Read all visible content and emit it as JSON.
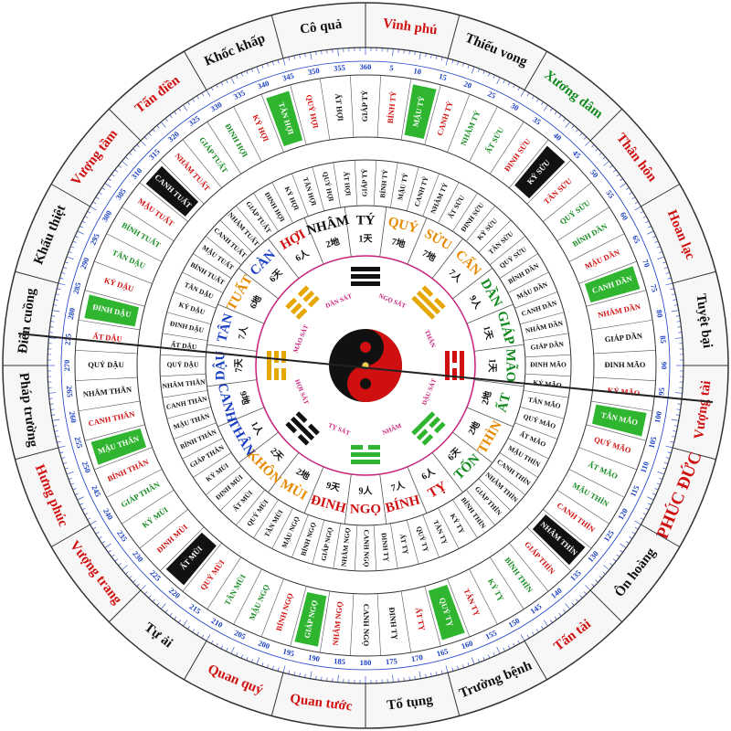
{
  "colors": {
    "red": "#d01010",
    "black": "#111111",
    "green": "#138a1f",
    "orange": "#e68a00",
    "blue": "#1a3fc4",
    "highlight_green": "#2fb52f",
    "highlight_black": "#111111"
  },
  "outer_ring": [
    {
      "text": "Vinh phú",
      "color": "red"
    },
    {
      "text": "Thiếu vong",
      "color": "black"
    },
    {
      "text": "Xương dâm",
      "color": "green"
    },
    {
      "text": "Thân hôn",
      "color": "red"
    },
    {
      "text": "Hoan lạc",
      "color": "red"
    },
    {
      "text": "Tuyệt bại",
      "color": "black"
    },
    {
      "text": "Vượng tài",
      "color": "red"
    },
    {
      "text": "PHÚC ĐỨC",
      "color": "red"
    },
    {
      "text": "Ôn hoàng",
      "color": "black"
    },
    {
      "text": "Tấn tài",
      "color": "red"
    },
    {
      "text": "Trường bệnh",
      "color": "black"
    },
    {
      "text": "Tố tụng",
      "color": "black"
    },
    {
      "text": "Quan tước",
      "color": "red"
    },
    {
      "text": "Quan quý",
      "color": "red"
    },
    {
      "text": "Tự ải",
      "color": "black"
    },
    {
      "text": "Vượng trang",
      "color": "red"
    },
    {
      "text": "Hưng phúc",
      "color": "red"
    },
    {
      "text": "Pháp trường",
      "color": "black"
    },
    {
      "text": "Điên cuồng",
      "color": "black"
    },
    {
      "text": "Khẩu thiệt",
      "color": "black"
    },
    {
      "text": "Vượng tầm",
      "color": "red"
    },
    {
      "text": "Tấn điền",
      "color": "red"
    },
    {
      "text": "Khốc khấp",
      "color": "black"
    },
    {
      "text": "Cô quả",
      "color": "black"
    }
  ],
  "degree_labels": [
    "5",
    "10",
    "15",
    "20",
    "25",
    "30",
    "35",
    "40",
    "45",
    "50",
    "55",
    "60",
    "65",
    "70",
    "75",
    "80",
    "85",
    "90",
    "95",
    "100",
    "105",
    "110",
    "115",
    "120",
    "125",
    "130",
    "135",
    "140",
    "145",
    "150",
    "155",
    "160",
    "165",
    "170",
    "175",
    "180",
    "185",
    "190",
    "195",
    "200",
    "205",
    "210",
    "215",
    "220",
    "225",
    "230",
    "235",
    "240",
    "245",
    "250",
    "255",
    "260",
    "265",
    "270",
    "275",
    "280",
    "285",
    "290",
    "295",
    "300",
    "305",
    "310",
    "315",
    "320",
    "325",
    "330",
    "335",
    "340",
    "345",
    "350",
    "355",
    "360"
  ],
  "sixty_ring": [
    {
      "text": "GIÁP TÝ",
      "color": "black"
    },
    {
      "text": "BÍNH TÝ",
      "color": "red"
    },
    {
      "text": "MẬU TÝ",
      "color": "green",
      "hl": "green"
    },
    {
      "text": "CANH TÝ",
      "color": "red"
    },
    {
      "text": "NHÂM TÝ",
      "color": "green"
    },
    {
      "text": "ẤT SỬU",
      "color": "green"
    },
    {
      "text": "ĐINH SỬU",
      "color": "red"
    },
    {
      "text": "KỶ SỬU",
      "color": "black",
      "hl": "black"
    },
    {
      "text": "TÂN SỬU",
      "color": "red"
    },
    {
      "text": "QUÝ SỬU",
      "color": "green"
    },
    {
      "text": "BÍNH DẦN",
      "color": "green"
    },
    {
      "text": "MẬU DẦN",
      "color": "red"
    },
    {
      "text": "CANH DẦN",
      "color": "green",
      "hl": "green"
    },
    {
      "text": "NHÂM DẦN",
      "color": "red"
    },
    {
      "text": "GIÁP DẦN",
      "color": "black"
    },
    {
      "text": "ĐINH MÃO",
      "color": "black"
    },
    {
      "text": "KỶ MÃO",
      "color": "red"
    },
    {
      "text": "TÂN MÃO",
      "color": "green",
      "hl": "green"
    },
    {
      "text": "QUÝ MÃO",
      "color": "red"
    },
    {
      "text": "ẤT MÃO",
      "color": "green"
    },
    {
      "text": "MẬU THÌN",
      "color": "green"
    },
    {
      "text": "CANH THÌN",
      "color": "red"
    },
    {
      "text": "NHÂM THÌN",
      "color": "black",
      "hl": "black"
    },
    {
      "text": "GIÁP THÌN",
      "color": "red"
    },
    {
      "text": "BÍNH THÌN",
      "color": "green"
    },
    {
      "text": "KỶ TỴ",
      "color": "green"
    },
    {
      "text": "TÂN TỴ",
      "color": "red"
    },
    {
      "text": "QUÝ TỴ",
      "color": "green",
      "hl": "green"
    },
    {
      "text": "ẤT TỴ",
      "color": "red"
    },
    {
      "text": "ĐINH TỴ",
      "color": "black"
    },
    {
      "text": "CANH NGỌ",
      "color": "black"
    },
    {
      "text": "NHÂM NGỌ",
      "color": "red"
    },
    {
      "text": "GIÁP NGỌ",
      "color": "green",
      "hl": "green"
    },
    {
      "text": "BÍNH NGỌ",
      "color": "red"
    },
    {
      "text": "MẬU NGỌ",
      "color": "green"
    },
    {
      "text": "TÂN MÙI",
      "color": "green"
    },
    {
      "text": "QUÝ MÙI",
      "color": "red"
    },
    {
      "text": "ẤT MÙI",
      "color": "black",
      "hl": "black"
    },
    {
      "text": "ĐINH MÙI",
      "color": "red"
    },
    {
      "text": "KỶ MÙI",
      "color": "green"
    },
    {
      "text": "GIÁP THÂN",
      "color": "green"
    },
    {
      "text": "BÍNH THÂN",
      "color": "red"
    },
    {
      "text": "MẬU THÂN",
      "color": "green",
      "hl": "green"
    },
    {
      "text": "CANH THÂN",
      "color": "red"
    },
    {
      "text": "NHÂM THÂN",
      "color": "black"
    },
    {
      "text": "QUÝ DẬU",
      "color": "black"
    },
    {
      "text": "ẤT DẬU",
      "color": "red"
    },
    {
      "text": "ĐINH DẬU",
      "color": "green",
      "hl": "green"
    },
    {
      "text": "KỶ DẬU",
      "color": "red"
    },
    {
      "text": "TÂN DẬU",
      "color": "green"
    },
    {
      "text": "BÍNH TUẤT",
      "color": "green"
    },
    {
      "text": "MẬU TUẤT",
      "color": "red"
    },
    {
      "text": "CANH TUẤT",
      "color": "black",
      "hl": "black"
    },
    {
      "text": "NHÂM TUẤT",
      "color": "red"
    },
    {
      "text": "GIÁP TUẤT",
      "color": "green"
    },
    {
      "text": "ĐINH HỢI",
      "color": "green"
    },
    {
      "text": "KỶ HỢI",
      "color": "red"
    },
    {
      "text": "TÂN HỢI",
      "color": "green",
      "hl": "green"
    },
    {
      "text": "QUÝ HỢI",
      "color": "red"
    },
    {
      "text": "ẤT HỢI",
      "color": "black"
    }
  ],
  "inner_sixty_ring": [
    {
      "text": "GIÁP TÝ"
    },
    {
      "text": "BÍNH TÝ"
    },
    {
      "text": "MẬU TÝ"
    },
    {
      "text": "CANH TÝ"
    },
    {
      "text": "NHÂM TÝ"
    },
    {
      "text": "ẤT SỬU"
    },
    {
      "text": "ĐINH SỬU"
    },
    {
      "text": "KỶ SỬU"
    },
    {
      "text": "TÂN SỬU"
    },
    {
      "text": "QUÝ SỬU"
    },
    {
      "text": "BÍNH DẦN"
    },
    {
      "text": "MẬU DẦN"
    },
    {
      "text": "CANH DẦN"
    },
    {
      "text": "NHÂM DẦN"
    },
    {
      "text": "GIÁP DẦN"
    },
    {
      "text": "ĐINH MÃO"
    },
    {
      "text": "KỶ MÃO"
    },
    {
      "text": "TÂN MÃO"
    },
    {
      "text": "QUÝ MÃO"
    },
    {
      "text": "ẤT MÃO"
    },
    {
      "text": "MẬU THÌN"
    },
    {
      "text": "CANH THÌN"
    },
    {
      "text": "NHÂM THÌN"
    },
    {
      "text": "GIÁP THÌN"
    },
    {
      "text": "BÍNH THÌN"
    },
    {
      "text": "KỶ TỴ"
    },
    {
      "text": "TÂN TỴ"
    },
    {
      "text": "QUÝ TỴ"
    },
    {
      "text": "ẤT TỴ"
    },
    {
      "text": "ĐINH TỴ"
    },
    {
      "text": "CANH NGỌ"
    },
    {
      "text": "NHÂM NGỌ"
    },
    {
      "text": "GIÁP NGỌ"
    },
    {
      "text": "BÍNH NGỌ"
    },
    {
      "text": "MẬU NGỌ"
    },
    {
      "text": "TÂN MÙI"
    },
    {
      "text": "QUÝ MÙI"
    },
    {
      "text": "ẤT MÙI"
    },
    {
      "text": "ĐINH MÙI"
    },
    {
      "text": "KỶ MÙI"
    },
    {
      "text": "GIÁP THÂN"
    },
    {
      "text": "BÍNH THÂN"
    },
    {
      "text": "MẬU THÂN"
    },
    {
      "text": "CANH THÂN"
    },
    {
      "text": "NHÂM THÂN"
    },
    {
      "text": "QUÝ DẬU"
    },
    {
      "text": "ẤT DẬU"
    },
    {
      "text": "ĐINH DẬU"
    },
    {
      "text": "KỶ DẬU"
    },
    {
      "text": "TÂN DẬU"
    },
    {
      "text": "BÍNH TUẤT"
    },
    {
      "text": "MẬU TUẤT"
    },
    {
      "text": "CANH TUẤT"
    },
    {
      "text": "NHÂM TUẤT"
    },
    {
      "text": "GIÁP TUẤT"
    },
    {
      "text": "ĐINH HỢI"
    },
    {
      "text": "KỶ HỢI"
    },
    {
      "text": "TÂN HỢI"
    },
    {
      "text": "QUÝ HỢI"
    },
    {
      "text": "ẤT HỢI"
    }
  ],
  "mountains": [
    {
      "text": "TÝ",
      "sub": "1天",
      "color": "black"
    },
    {
      "text": "QUÝ",
      "sub": "7地",
      "color": "orange"
    },
    {
      "text": "SỬU",
      "sub": "7地",
      "color": "orange"
    },
    {
      "text": "CẤN",
      "sub": "7人",
      "color": "orange"
    },
    {
      "text": "DẦN",
      "sub": "9人",
      "color": "green"
    },
    {
      "text": "GIÁP",
      "sub": "1天",
      "color": "green"
    },
    {
      "text": "MÃO",
      "sub": "1天",
      "color": "green"
    },
    {
      "text": "ẤT",
      "sub": "2地",
      "color": "green"
    },
    {
      "text": "THÌN",
      "sub": "2地",
      "color": "orange"
    },
    {
      "text": "TỐN",
      "sub": "6天",
      "color": "green"
    },
    {
      "text": "TỴ",
      "sub": "6人",
      "color": "red"
    },
    {
      "text": "BÍNH",
      "sub": "7人",
      "color": "red"
    },
    {
      "text": "NGỌ",
      "sub": "9人",
      "color": "red"
    },
    {
      "text": "ĐINH",
      "sub": "9天",
      "color": "red"
    },
    {
      "text": "MÙI",
      "sub": "2地",
      "color": "orange"
    },
    {
      "text": "KHÔN",
      "sub": "2天",
      "color": "orange"
    },
    {
      "text": "THÂN",
      "sub": "1人",
      "color": "blue"
    },
    {
      "text": "CANH",
      "sub": "9地",
      "color": "blue"
    },
    {
      "text": "DẬU",
      "sub": "7天",
      "color": "blue"
    },
    {
      "text": "TÂN",
      "sub": "7人",
      "color": "blue"
    },
    {
      "text": "TUẤT",
      "sub": "6地",
      "color": "orange"
    },
    {
      "text": "CÀN",
      "sub": "6天",
      "color": "blue"
    },
    {
      "text": "HỢI",
      "sub": "6人",
      "color": "red"
    },
    {
      "text": "NHÂM",
      "sub": "2地",
      "color": "black"
    }
  ],
  "inner_labels": [
    "NGỌ SÁT",
    "THÂN",
    "DẬU SÁT",
    "NHÂM",
    "TỴ SÁT",
    "HỢI SÁT",
    "MÃO SÁT",
    "DẦN SÁT"
  ]
}
